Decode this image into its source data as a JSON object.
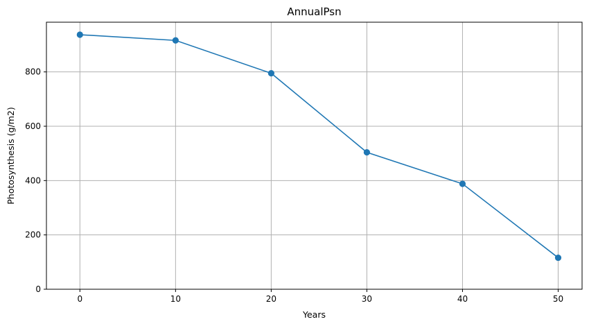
{
  "chart_data": {
    "type": "line",
    "title": "AnnualPsn",
    "xlabel": "Years",
    "ylabel": "Photosynthesis (g/m2)",
    "x": [
      0,
      10,
      20,
      30,
      40,
      50
    ],
    "series": [
      {
        "values": [
          937,
          916,
          795,
          504,
          388,
          116
        ],
        "color": "#1f77b4",
        "marker": "circle"
      }
    ],
    "xlim": [
      -3.5,
      52.5
    ],
    "ylim": [
      0,
      983
    ],
    "xticks": [
      0,
      10,
      20,
      30,
      40,
      50
    ],
    "yticks": [
      0,
      200,
      400,
      600,
      800
    ],
    "grid": true
  }
}
